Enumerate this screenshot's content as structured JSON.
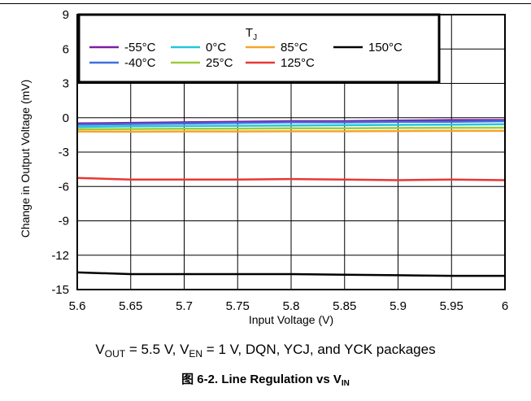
{
  "chart_data": {
    "type": "line",
    "xlabel": "Input Voltage (V)",
    "ylabel": "Change in Output Voltage (mV)",
    "xlim": [
      5.6,
      6
    ],
    "ylim": [
      -15,
      9
    ],
    "x_ticks": [
      5.6,
      5.65,
      5.7,
      5.75,
      5.8,
      5.85,
      5.9,
      5.95,
      6
    ],
    "x_tick_labels": [
      "5.6",
      "5.65",
      "5.7",
      "5.75",
      "5.8",
      "5.85",
      "5.9",
      "5.95",
      "6"
    ],
    "y_ticks": [
      9,
      6,
      3,
      0,
      -3,
      -6,
      -9,
      -12,
      -15
    ],
    "y_tick_labels": [
      "9",
      "6",
      "3",
      "0",
      "-3",
      "-6",
      "-9",
      "-12",
      "-15"
    ],
    "grid": true,
    "legend": {
      "title_main": "T",
      "title_sub": "J",
      "placement": "top-left"
    },
    "series": [
      {
        "name": "-55°C",
        "color": "#7b1fa2",
        "x": [
          5.6,
          5.65,
          5.7,
          5.75,
          5.8,
          5.85,
          5.9,
          5.95,
          6.0
        ],
        "values": [
          -0.5,
          -0.45,
          -0.4,
          -0.35,
          -0.3,
          -0.3,
          -0.25,
          -0.2,
          -0.2
        ]
      },
      {
        "name": "-40°C",
        "color": "#3f6fe0",
        "x": [
          5.6,
          5.65,
          5.7,
          5.75,
          5.8,
          5.85,
          5.9,
          5.95,
          6.0
        ],
        "values": [
          -0.6,
          -0.55,
          -0.5,
          -0.45,
          -0.4,
          -0.4,
          -0.35,
          -0.35,
          -0.3
        ]
      },
      {
        "name": "0°C",
        "color": "#26c6da",
        "x": [
          5.6,
          5.65,
          5.7,
          5.75,
          5.8,
          5.85,
          5.9,
          5.95,
          6.0
        ],
        "values": [
          -0.8,
          -0.75,
          -0.72,
          -0.7,
          -0.67,
          -0.65,
          -0.62,
          -0.6,
          -0.57
        ]
      },
      {
        "name": "25°C",
        "color": "#9ccc3c",
        "x": [
          5.6,
          5.65,
          5.7,
          5.75,
          5.8,
          5.85,
          5.9,
          5.95,
          6.0
        ],
        "values": [
          -1.0,
          -0.98,
          -0.96,
          -0.95,
          -0.93,
          -0.92,
          -0.9,
          -0.88,
          -0.87
        ]
      },
      {
        "name": "85°C",
        "color": "#f4a52a",
        "x": [
          5.6,
          5.65,
          5.7,
          5.75,
          5.8,
          5.85,
          5.9,
          5.95,
          6.0
        ],
        "values": [
          -1.2,
          -1.22,
          -1.2,
          -1.2,
          -1.18,
          -1.18,
          -1.16,
          -1.15,
          -1.15
        ]
      },
      {
        "name": "125°C",
        "color": "#e53935",
        "x": [
          5.6,
          5.65,
          5.7,
          5.75,
          5.8,
          5.85,
          5.9,
          5.95,
          6.0
        ],
        "values": [
          -5.25,
          -5.4,
          -5.4,
          -5.4,
          -5.35,
          -5.4,
          -5.45,
          -5.4,
          -5.45
        ]
      },
      {
        "name": "150°C",
        "color": "#000000",
        "x": [
          5.6,
          5.65,
          5.7,
          5.75,
          5.8,
          5.85,
          5.9,
          5.95,
          6.0
        ],
        "values": [
          -13.5,
          -13.65,
          -13.65,
          -13.65,
          -13.65,
          -13.7,
          -13.75,
          -13.8,
          -13.8
        ]
      }
    ]
  },
  "conditions": {
    "p1": "V",
    "s1": "OUT",
    "p2": " = 5.5 V, V",
    "s2": "EN",
    "p3": " = 1 V, DQN, YCJ, and YCK packages"
  },
  "caption": {
    "prefix": "图 6-2. Line Regulation vs V",
    "sub": "IN"
  }
}
